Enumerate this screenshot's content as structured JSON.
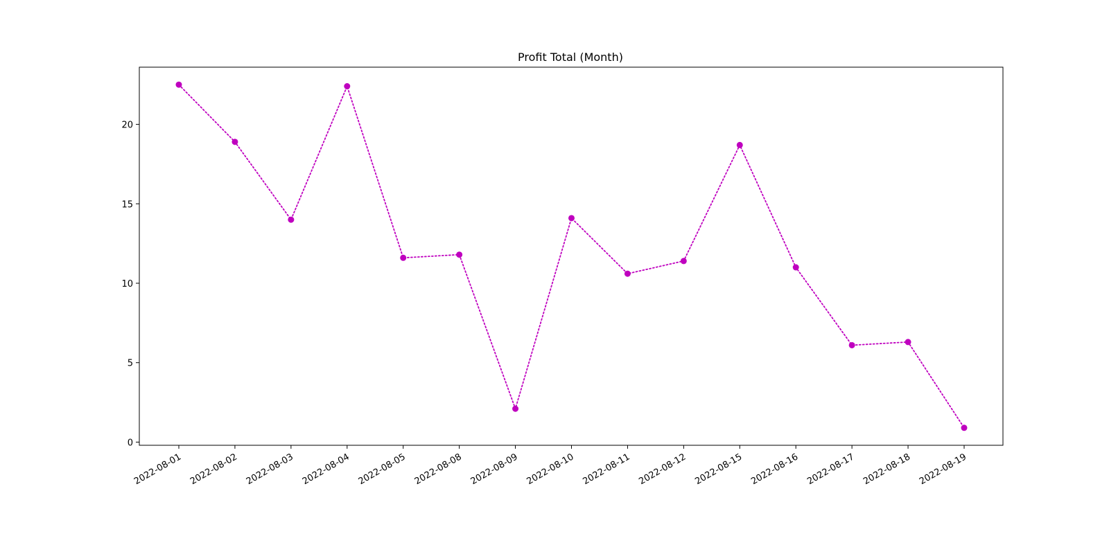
{
  "chart_data": {
    "type": "line",
    "title": "Profit Total (Month)",
    "xlabel": "",
    "ylabel": "",
    "categories": [
      "2022-08-01",
      "2022-08-02",
      "2022-08-03",
      "2022-08-04",
      "2022-08-05",
      "2022-08-08",
      "2022-08-09",
      "2022-08-10",
      "2022-08-11",
      "2022-08-12",
      "2022-08-15",
      "2022-08-16",
      "2022-08-17",
      "2022-08-18",
      "2022-08-19"
    ],
    "series": [
      {
        "values": [
          22.5,
          18.9,
          14.0,
          22.4,
          11.6,
          11.8,
          2.1,
          14.1,
          10.6,
          11.4,
          18.7,
          11.0,
          6.1,
          6.3,
          0.9
        ],
        "color": "#bf00bf",
        "line_style": "dotted",
        "marker": "circle"
      }
    ],
    "ylim": [
      -0.2,
      23.6
    ],
    "yticks": [
      0,
      5,
      10,
      15,
      20
    ],
    "grid": false,
    "legend": "none"
  }
}
